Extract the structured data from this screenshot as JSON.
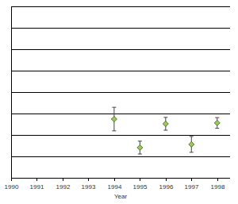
{
  "chart_data": {
    "type": "scatter",
    "x_label": "Year",
    "x": [
      1994,
      1995,
      1996,
      1997,
      1998
    ],
    "values": [
      2.74,
      1.41,
      2.52,
      1.56,
      2.56
    ],
    "errors": [
      0.55,
      0.3,
      0.3,
      0.37,
      0.25
    ],
    "color": "#99cc55",
    "marker": "diamond",
    "xlim": [
      1990,
      1998.5
    ],
    "xticks": [
      1990,
      1991,
      1992,
      1993,
      1994,
      1995,
      1996,
      1997,
      1998
    ],
    "ylim": [
      0,
      8
    ],
    "yticks": [
      0,
      1,
      2,
      3,
      4,
      5,
      6,
      7,
      8
    ],
    "grid": true,
    "tick_labels": "x"
  }
}
